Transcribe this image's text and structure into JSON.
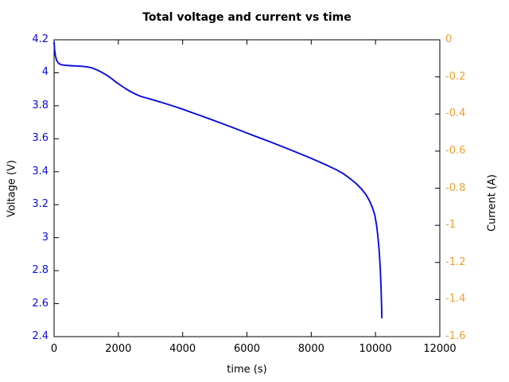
{
  "chart_data": {
    "type": "line",
    "title": "Total voltage and current vs time",
    "xlabel": "time (s)",
    "xlim": [
      0,
      12000
    ],
    "x_ticks": [
      0,
      2000,
      4000,
      6000,
      8000,
      10000,
      12000
    ],
    "grid": false,
    "legend": "none",
    "frame_color": "#000000",
    "background_color": "#ffffff",
    "left_axis": {
      "label": "Voltage (V)",
      "lim": [
        2.4,
        4.2
      ],
      "ticks": [
        4.2,
        4,
        3.8,
        3.6,
        3.4,
        3.2,
        3,
        2.8,
        2.6,
        2.4
      ],
      "color": "#0b0bdf"
    },
    "right_axis": {
      "label": "Current (A)",
      "lim": [
        -1.6,
        0
      ],
      "ticks": [
        0,
        -0.2,
        -0.4,
        -0.6,
        -0.8,
        -1,
        -1.2,
        -1.4,
        -1.6
      ],
      "color": "#eda030"
    },
    "series": [
      {
        "name": "Total voltage",
        "axis": "left",
        "color": "#0b0bdf",
        "points": [
          [
            0,
            4.185
          ],
          [
            15,
            4.142
          ],
          [
            40,
            4.105
          ],
          [
            80,
            4.075
          ],
          [
            140,
            4.057
          ],
          [
            220,
            4.049
          ],
          [
            350,
            4.045
          ],
          [
            500,
            4.043
          ],
          [
            700,
            4.041
          ],
          [
            900,
            4.039
          ],
          [
            1050,
            4.035
          ],
          [
            1200,
            4.028
          ],
          [
            1350,
            4.016
          ],
          [
            1500,
            4.001
          ],
          [
            1650,
            3.984
          ],
          [
            1800,
            3.963
          ],
          [
            1950,
            3.94
          ],
          [
            2100,
            3.92
          ],
          [
            2250,
            3.901
          ],
          [
            2400,
            3.884
          ],
          [
            2550,
            3.869
          ],
          [
            2700,
            3.857
          ],
          [
            2850,
            3.848
          ],
          [
            3000,
            3.84
          ],
          [
            3200,
            3.829
          ],
          [
            3400,
            3.817
          ],
          [
            3600,
            3.805
          ],
          [
            3800,
            3.792
          ],
          [
            4000,
            3.779
          ],
          [
            4300,
            3.758
          ],
          [
            4600,
            3.737
          ],
          [
            4900,
            3.716
          ],
          [
            5200,
            3.694
          ],
          [
            5500,
            3.672
          ],
          [
            5800,
            3.65
          ],
          [
            6100,
            3.627
          ],
          [
            6400,
            3.605
          ],
          [
            6700,
            3.583
          ],
          [
            7000,
            3.56
          ],
          [
            7300,
            3.537
          ],
          [
            7600,
            3.513
          ],
          [
            7900,
            3.489
          ],
          [
            8200,
            3.464
          ],
          [
            8500,
            3.438
          ],
          [
            8800,
            3.41
          ],
          [
            9000,
            3.388
          ],
          [
            9200,
            3.36
          ],
          [
            9400,
            3.328
          ],
          [
            9550,
            3.298
          ],
          [
            9700,
            3.262
          ],
          [
            9800,
            3.228
          ],
          [
            9900,
            3.185
          ],
          [
            9980,
            3.135
          ],
          [
            10040,
            3.065
          ],
          [
            10080,
            2.995
          ],
          [
            10120,
            2.905
          ],
          [
            10150,
            2.805
          ],
          [
            10172,
            2.695
          ],
          [
            10188,
            2.585
          ],
          [
            10196,
            2.515
          ]
        ]
      }
    ]
  }
}
